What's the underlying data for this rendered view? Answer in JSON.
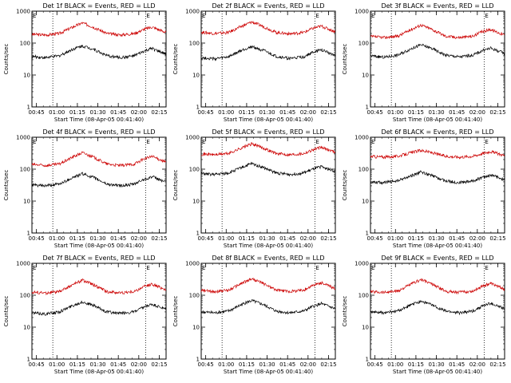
{
  "page": {
    "background": "#ffffff"
  },
  "chart_data": {
    "type": "line",
    "layout": "3x3 grid",
    "xlabel": "Start Time (08-Apr-05 00:41:40)",
    "ylabel": "Counts/sec",
    "yscale": "log",
    "ylim": [
      1,
      1000
    ],
    "ytick_labels": [
      "1",
      "10",
      "100",
      "1000"
    ],
    "xlim_minutes": [
      0,
      98.3
    ],
    "colors": {
      "events": "#000000",
      "lld": "#cc0000",
      "axes": "#000000"
    },
    "vline_minutes": [
      15.3,
      83.3
    ],
    "marker_text": "E",
    "marker_minutes": [
      0,
      83.3
    ],
    "panels": [
      {
        "title": "Det 1f BLACK = Events, RED = LLD",
        "xtick_labels": [
          "00:45",
          "01:00",
          "01:15",
          "01:30",
          "01:45",
          "02:00",
          "02:15"
        ],
        "xtick_minutes": [
          3.3,
          18.3,
          33.3,
          48.3,
          63.3,
          78.3,
          93.3
        ],
        "events_pts": [
          [
            0,
            38
          ],
          [
            10,
            35
          ],
          [
            20,
            40
          ],
          [
            30,
            65
          ],
          [
            37,
            82
          ],
          [
            45,
            65
          ],
          [
            55,
            40
          ],
          [
            65,
            35
          ],
          [
            75,
            40
          ],
          [
            82,
            55
          ],
          [
            88,
            68
          ],
          [
            98,
            45
          ]
        ],
        "lld_pts": [
          [
            0,
            190
          ],
          [
            10,
            180
          ],
          [
            20,
            200
          ],
          [
            30,
            320
          ],
          [
            37,
            430
          ],
          [
            45,
            320
          ],
          [
            55,
            200
          ],
          [
            65,
            180
          ],
          [
            75,
            200
          ],
          [
            82,
            270
          ],
          [
            88,
            320
          ],
          [
            98,
            220
          ]
        ]
      },
      {
        "title": "Det 2f BLACK = Events, RED = LLD",
        "xtick_labels": [
          "00:45",
          "01:00",
          "01:15",
          "01:30",
          "01:45",
          "02:00",
          "02:15"
        ],
        "xtick_minutes": [
          3.3,
          18.3,
          33.3,
          48.3,
          63.3,
          78.3,
          93.3
        ],
        "events_pts": [
          [
            0,
            35
          ],
          [
            10,
            32
          ],
          [
            20,
            37
          ],
          [
            30,
            60
          ],
          [
            37,
            78
          ],
          [
            45,
            60
          ],
          [
            55,
            38
          ],
          [
            65,
            33
          ],
          [
            75,
            37
          ],
          [
            82,
            52
          ],
          [
            88,
            62
          ],
          [
            98,
            42
          ]
        ],
        "lld_pts": [
          [
            0,
            220
          ],
          [
            10,
            200
          ],
          [
            20,
            215
          ],
          [
            30,
            340
          ],
          [
            37,
            460
          ],
          [
            45,
            340
          ],
          [
            55,
            215
          ],
          [
            65,
            195
          ],
          [
            75,
            215
          ],
          [
            82,
            290
          ],
          [
            88,
            340
          ],
          [
            98,
            230
          ]
        ]
      },
      {
        "title": "Det 3f BLACK = Events, RED = LLD",
        "xtick_labels": [
          "00:45",
          "01:00",
          "01:15",
          "01:30",
          "01:45",
          "02:00",
          "02:15"
        ],
        "xtick_minutes": [
          3.3,
          18.3,
          33.3,
          48.3,
          63.3,
          78.3,
          93.3
        ],
        "events_pts": [
          [
            0,
            40
          ],
          [
            10,
            36
          ],
          [
            20,
            42
          ],
          [
            30,
            68
          ],
          [
            37,
            88
          ],
          [
            45,
            68
          ],
          [
            55,
            42
          ],
          [
            65,
            37
          ],
          [
            75,
            42
          ],
          [
            82,
            58
          ],
          [
            88,
            70
          ],
          [
            98,
            48
          ]
        ],
        "lld_pts": [
          [
            0,
            160
          ],
          [
            10,
            150
          ],
          [
            20,
            165
          ],
          [
            30,
            270
          ],
          [
            37,
            370
          ],
          [
            45,
            270
          ],
          [
            55,
            165
          ],
          [
            65,
            150
          ],
          [
            75,
            165
          ],
          [
            82,
            230
          ],
          [
            88,
            270
          ],
          [
            98,
            180
          ]
        ]
      },
      {
        "title": "Det 4f BLACK = Events, RED = LLD",
        "xtick_labels": [
          "00:45",
          "01:00",
          "01:15",
          "01:30",
          "01:45",
          "02:00",
          "02:15"
        ],
        "xtick_minutes": [
          3.3,
          18.3,
          33.3,
          48.3,
          63.3,
          78.3,
          93.3
        ],
        "events_pts": [
          [
            0,
            32
          ],
          [
            10,
            30
          ],
          [
            20,
            34
          ],
          [
            30,
            55
          ],
          [
            37,
            72
          ],
          [
            45,
            55
          ],
          [
            55,
            34
          ],
          [
            65,
            30
          ],
          [
            75,
            34
          ],
          [
            82,
            48
          ],
          [
            88,
            58
          ],
          [
            98,
            40
          ]
        ],
        "lld_pts": [
          [
            0,
            140
          ],
          [
            10,
            130
          ],
          [
            20,
            145
          ],
          [
            30,
            240
          ],
          [
            37,
            330
          ],
          [
            45,
            240
          ],
          [
            55,
            145
          ],
          [
            65,
            130
          ],
          [
            75,
            145
          ],
          [
            82,
            210
          ],
          [
            88,
            250
          ],
          [
            98,
            170
          ]
        ]
      },
      {
        "title": "Det 5f BLACK = Events, RED = LLD",
        "xtick_labels": [
          "00:45",
          "01:00",
          "01:15",
          "01:30",
          "01:45",
          "02:00",
          "02:15"
        ],
        "xtick_minutes": [
          3.3,
          18.3,
          33.3,
          48.3,
          63.3,
          78.3,
          93.3
        ],
        "events_pts": [
          [
            0,
            72
          ],
          [
            10,
            68
          ],
          [
            20,
            76
          ],
          [
            30,
            115
          ],
          [
            37,
            150
          ],
          [
            45,
            115
          ],
          [
            55,
            76
          ],
          [
            65,
            68
          ],
          [
            75,
            76
          ],
          [
            82,
            100
          ],
          [
            88,
            120
          ],
          [
            98,
            85
          ]
        ],
        "lld_pts": [
          [
            0,
            300
          ],
          [
            10,
            285
          ],
          [
            20,
            310
          ],
          [
            30,
            470
          ],
          [
            37,
            620
          ],
          [
            45,
            470
          ],
          [
            55,
            310
          ],
          [
            65,
            285
          ],
          [
            75,
            310
          ],
          [
            82,
            410
          ],
          [
            88,
            480
          ],
          [
            98,
            350
          ]
        ]
      },
      {
        "title": "Det 6f BLACK = Events, RED = LLD",
        "xtick_labels": [
          "00:45",
          "01:00",
          "01:15",
          "01:30",
          "01:45",
          "02:00",
          "02:15"
        ],
        "xtick_minutes": [
          3.3,
          18.3,
          33.3,
          48.3,
          63.3,
          78.3,
          93.3
        ],
        "events_pts": [
          [
            0,
            40
          ],
          [
            10,
            38
          ],
          [
            20,
            43
          ],
          [
            30,
            62
          ],
          [
            37,
            82
          ],
          [
            45,
            62
          ],
          [
            55,
            43
          ],
          [
            65,
            38
          ],
          [
            75,
            43
          ],
          [
            82,
            55
          ],
          [
            88,
            66
          ],
          [
            98,
            48
          ]
        ],
        "lld_pts": [
          [
            0,
            250
          ],
          [
            10,
            240
          ],
          [
            20,
            255
          ],
          [
            30,
            330
          ],
          [
            37,
            390
          ],
          [
            45,
            330
          ],
          [
            55,
            255
          ],
          [
            65,
            240
          ],
          [
            75,
            255
          ],
          [
            82,
            310
          ],
          [
            88,
            360
          ],
          [
            98,
            270
          ]
        ]
      },
      {
        "title": "Det 7f BLACK = Events, RED = LLD",
        "xtick_labels": [
          "00:45",
          "01:00",
          "01:15",
          "01:30",
          "01:45",
          "02:00",
          "02:15"
        ],
        "xtick_minutes": [
          3.3,
          18.3,
          33.3,
          48.3,
          63.3,
          78.3,
          93.3
        ],
        "events_pts": [
          [
            0,
            28
          ],
          [
            10,
            26
          ],
          [
            20,
            30
          ],
          [
            30,
            48
          ],
          [
            37,
            62
          ],
          [
            45,
            48
          ],
          [
            55,
            30
          ],
          [
            65,
            27
          ],
          [
            75,
            30
          ],
          [
            82,
            42
          ],
          [
            88,
            52
          ],
          [
            98,
            36
          ]
        ],
        "lld_pts": [
          [
            0,
            125
          ],
          [
            10,
            118
          ],
          [
            20,
            130
          ],
          [
            30,
            215
          ],
          [
            37,
            300
          ],
          [
            45,
            215
          ],
          [
            55,
            130
          ],
          [
            65,
            118
          ],
          [
            75,
            130
          ],
          [
            82,
            185
          ],
          [
            88,
            225
          ],
          [
            98,
            150
          ]
        ]
      },
      {
        "title": "Det 8f BLACK = Events, RED = LLD",
        "xtick_labels": [
          "00:45",
          "01:00",
          "01:15",
          "01:30",
          "01:45",
          "02:00",
          "02:15"
        ],
        "xtick_minutes": [
          3.3,
          18.3,
          33.3,
          48.3,
          63.3,
          78.3,
          93.3
        ],
        "events_pts": [
          [
            0,
            30
          ],
          [
            10,
            28
          ],
          [
            20,
            32
          ],
          [
            30,
            52
          ],
          [
            37,
            68
          ],
          [
            45,
            52
          ],
          [
            55,
            32
          ],
          [
            65,
            28
          ],
          [
            75,
            32
          ],
          [
            82,
            45
          ],
          [
            88,
            55
          ],
          [
            98,
            38
          ]
        ],
        "lld_pts": [
          [
            0,
            140
          ],
          [
            10,
            132
          ],
          [
            20,
            145
          ],
          [
            30,
            240
          ],
          [
            37,
            330
          ],
          [
            45,
            240
          ],
          [
            55,
            145
          ],
          [
            65,
            132
          ],
          [
            75,
            145
          ],
          [
            82,
            205
          ],
          [
            88,
            245
          ],
          [
            98,
            165
          ]
        ]
      },
      {
        "title": "Det 9f BLACK = Events, RED = LLD",
        "xtick_labels": [
          "00:45",
          "01:00",
          "01:15",
          "01:30",
          "01:45",
          "02:00",
          "02:15"
        ],
        "xtick_minutes": [
          3.3,
          18.3,
          33.3,
          48.3,
          63.3,
          78.3,
          93.3
        ],
        "events_pts": [
          [
            0,
            30
          ],
          [
            10,
            28
          ],
          [
            20,
            32
          ],
          [
            30,
            50
          ],
          [
            37,
            66
          ],
          [
            45,
            50
          ],
          [
            55,
            32
          ],
          [
            65,
            28
          ],
          [
            75,
            32
          ],
          [
            82,
            46
          ],
          [
            88,
            56
          ],
          [
            98,
            38
          ]
        ],
        "lld_pts": [
          [
            0,
            130
          ],
          [
            10,
            124
          ],
          [
            20,
            135
          ],
          [
            30,
            225
          ],
          [
            37,
            310
          ],
          [
            45,
            225
          ],
          [
            55,
            135
          ],
          [
            65,
            124
          ],
          [
            75,
            135
          ],
          [
            82,
            195
          ],
          [
            88,
            235
          ],
          [
            98,
            158
          ]
        ]
      }
    ]
  }
}
